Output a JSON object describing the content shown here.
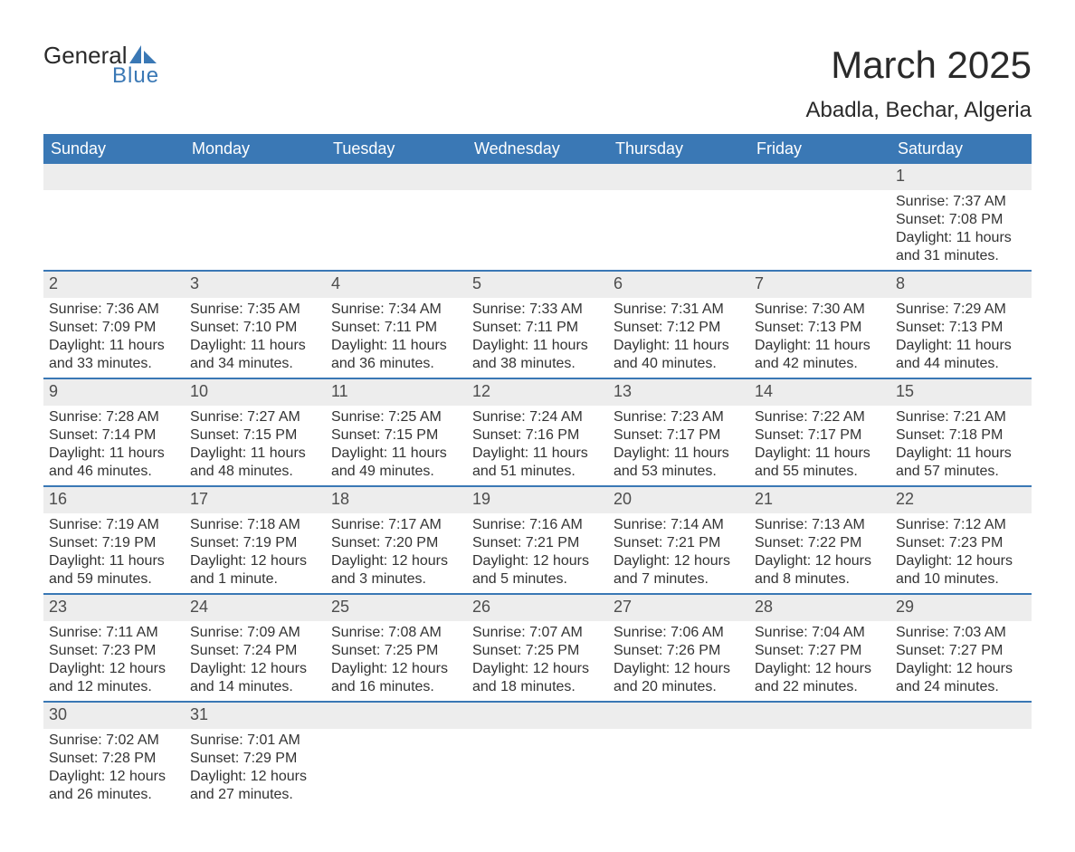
{
  "logo": {
    "text1": "General",
    "text2": "Blue",
    "shape_color": "#3a78b5"
  },
  "title": "March 2025",
  "location": "Abadla, Bechar, Algeria",
  "header_bg": "#3a78b5",
  "header_fg": "#ffffff",
  "daynum_bg": "#ededed",
  "row_divider": "#3a78b5",
  "text_color": "#333333",
  "day_headers": [
    "Sunday",
    "Monday",
    "Tuesday",
    "Wednesday",
    "Thursday",
    "Friday",
    "Saturday"
  ],
  "weeks": [
    [
      null,
      null,
      null,
      null,
      null,
      null,
      {
        "n": "1",
        "sr": "Sunrise: 7:37 AM",
        "ss": "Sunset: 7:08 PM",
        "d1": "Daylight: 11 hours",
        "d2": "and 31 minutes."
      }
    ],
    [
      {
        "n": "2",
        "sr": "Sunrise: 7:36 AM",
        "ss": "Sunset: 7:09 PM",
        "d1": "Daylight: 11 hours",
        "d2": "and 33 minutes."
      },
      {
        "n": "3",
        "sr": "Sunrise: 7:35 AM",
        "ss": "Sunset: 7:10 PM",
        "d1": "Daylight: 11 hours",
        "d2": "and 34 minutes."
      },
      {
        "n": "4",
        "sr": "Sunrise: 7:34 AM",
        "ss": "Sunset: 7:11 PM",
        "d1": "Daylight: 11 hours",
        "d2": "and 36 minutes."
      },
      {
        "n": "5",
        "sr": "Sunrise: 7:33 AM",
        "ss": "Sunset: 7:11 PM",
        "d1": "Daylight: 11 hours",
        "d2": "and 38 minutes."
      },
      {
        "n": "6",
        "sr": "Sunrise: 7:31 AM",
        "ss": "Sunset: 7:12 PM",
        "d1": "Daylight: 11 hours",
        "d2": "and 40 minutes."
      },
      {
        "n": "7",
        "sr": "Sunrise: 7:30 AM",
        "ss": "Sunset: 7:13 PM",
        "d1": "Daylight: 11 hours",
        "d2": "and 42 minutes."
      },
      {
        "n": "8",
        "sr": "Sunrise: 7:29 AM",
        "ss": "Sunset: 7:13 PM",
        "d1": "Daylight: 11 hours",
        "d2": "and 44 minutes."
      }
    ],
    [
      {
        "n": "9",
        "sr": "Sunrise: 7:28 AM",
        "ss": "Sunset: 7:14 PM",
        "d1": "Daylight: 11 hours",
        "d2": "and 46 minutes."
      },
      {
        "n": "10",
        "sr": "Sunrise: 7:27 AM",
        "ss": "Sunset: 7:15 PM",
        "d1": "Daylight: 11 hours",
        "d2": "and 48 minutes."
      },
      {
        "n": "11",
        "sr": "Sunrise: 7:25 AM",
        "ss": "Sunset: 7:15 PM",
        "d1": "Daylight: 11 hours",
        "d2": "and 49 minutes."
      },
      {
        "n": "12",
        "sr": "Sunrise: 7:24 AM",
        "ss": "Sunset: 7:16 PM",
        "d1": "Daylight: 11 hours",
        "d2": "and 51 minutes."
      },
      {
        "n": "13",
        "sr": "Sunrise: 7:23 AM",
        "ss": "Sunset: 7:17 PM",
        "d1": "Daylight: 11 hours",
        "d2": "and 53 minutes."
      },
      {
        "n": "14",
        "sr": "Sunrise: 7:22 AM",
        "ss": "Sunset: 7:17 PM",
        "d1": "Daylight: 11 hours",
        "d2": "and 55 minutes."
      },
      {
        "n": "15",
        "sr": "Sunrise: 7:21 AM",
        "ss": "Sunset: 7:18 PM",
        "d1": "Daylight: 11 hours",
        "d2": "and 57 minutes."
      }
    ],
    [
      {
        "n": "16",
        "sr": "Sunrise: 7:19 AM",
        "ss": "Sunset: 7:19 PM",
        "d1": "Daylight: 11 hours",
        "d2": "and 59 minutes."
      },
      {
        "n": "17",
        "sr": "Sunrise: 7:18 AM",
        "ss": "Sunset: 7:19 PM",
        "d1": "Daylight: 12 hours",
        "d2": "and 1 minute."
      },
      {
        "n": "18",
        "sr": "Sunrise: 7:17 AM",
        "ss": "Sunset: 7:20 PM",
        "d1": "Daylight: 12 hours",
        "d2": "and 3 minutes."
      },
      {
        "n": "19",
        "sr": "Sunrise: 7:16 AM",
        "ss": "Sunset: 7:21 PM",
        "d1": "Daylight: 12 hours",
        "d2": "and 5 minutes."
      },
      {
        "n": "20",
        "sr": "Sunrise: 7:14 AM",
        "ss": "Sunset: 7:21 PM",
        "d1": "Daylight: 12 hours",
        "d2": "and 7 minutes."
      },
      {
        "n": "21",
        "sr": "Sunrise: 7:13 AM",
        "ss": "Sunset: 7:22 PM",
        "d1": "Daylight: 12 hours",
        "d2": "and 8 minutes."
      },
      {
        "n": "22",
        "sr": "Sunrise: 7:12 AM",
        "ss": "Sunset: 7:23 PM",
        "d1": "Daylight: 12 hours",
        "d2": "and 10 minutes."
      }
    ],
    [
      {
        "n": "23",
        "sr": "Sunrise: 7:11 AM",
        "ss": "Sunset: 7:23 PM",
        "d1": "Daylight: 12 hours",
        "d2": "and 12 minutes."
      },
      {
        "n": "24",
        "sr": "Sunrise: 7:09 AM",
        "ss": "Sunset: 7:24 PM",
        "d1": "Daylight: 12 hours",
        "d2": "and 14 minutes."
      },
      {
        "n": "25",
        "sr": "Sunrise: 7:08 AM",
        "ss": "Sunset: 7:25 PM",
        "d1": "Daylight: 12 hours",
        "d2": "and 16 minutes."
      },
      {
        "n": "26",
        "sr": "Sunrise: 7:07 AM",
        "ss": "Sunset: 7:25 PM",
        "d1": "Daylight: 12 hours",
        "d2": "and 18 minutes."
      },
      {
        "n": "27",
        "sr": "Sunrise: 7:06 AM",
        "ss": "Sunset: 7:26 PM",
        "d1": "Daylight: 12 hours",
        "d2": "and 20 minutes."
      },
      {
        "n": "28",
        "sr": "Sunrise: 7:04 AM",
        "ss": "Sunset: 7:27 PM",
        "d1": "Daylight: 12 hours",
        "d2": "and 22 minutes."
      },
      {
        "n": "29",
        "sr": "Sunrise: 7:03 AM",
        "ss": "Sunset: 7:27 PM",
        "d1": "Daylight: 12 hours",
        "d2": "and 24 minutes."
      }
    ],
    [
      {
        "n": "30",
        "sr": "Sunrise: 7:02 AM",
        "ss": "Sunset: 7:28 PM",
        "d1": "Daylight: 12 hours",
        "d2": "and 26 minutes."
      },
      {
        "n": "31",
        "sr": "Sunrise: 7:01 AM",
        "ss": "Sunset: 7:29 PM",
        "d1": "Daylight: 12 hours",
        "d2": "and 27 minutes."
      },
      null,
      null,
      null,
      null,
      null
    ]
  ]
}
